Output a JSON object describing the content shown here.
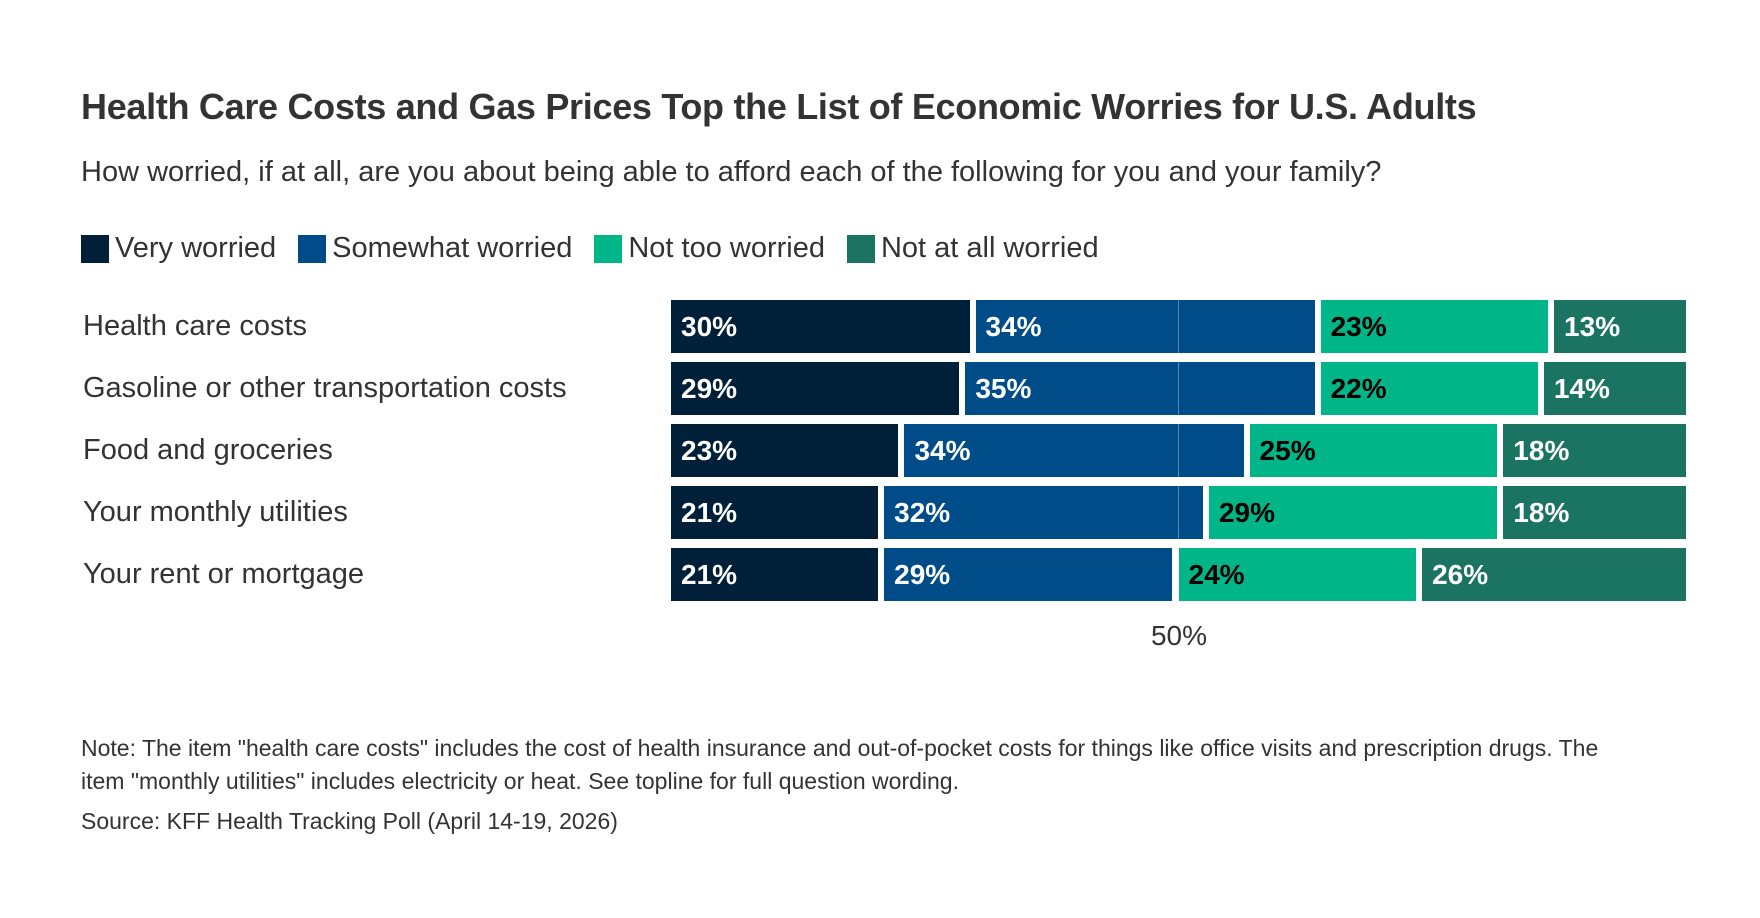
{
  "chart_data": {
    "type": "bar",
    "orientation": "horizontal-stacked",
    "title": "Health Care Costs and Gas Prices Top the List of Economic Worries for U.S. Adults",
    "subtitle": "How worried, if at all, are you about being able to afford each of the following for you and your family?",
    "categories": [
      "Health care costs",
      "Gasoline or other transportation costs",
      "Food and groceries",
      "Your monthly utilities",
      "Your rent or mortgage"
    ],
    "series": [
      {
        "name": "Very worried",
        "color": "#001f38",
        "label_color": "#ffffff",
        "values": [
          30,
          29,
          23,
          21,
          21
        ]
      },
      {
        "name": "Somewhat worried",
        "color": "#004c88",
        "label_color": "#ffffff",
        "values": [
          34,
          35,
          34,
          32,
          29
        ]
      },
      {
        "name": "Not too worried",
        "color": "#00b588",
        "label_color": "#000000",
        "values": [
          23,
          22,
          25,
          29,
          24
        ]
      },
      {
        "name": "Not at all worried",
        "color": "#1b7461",
        "label_color": "#ffffff",
        "values": [
          13,
          14,
          18,
          18,
          26
        ]
      }
    ],
    "xlim": [
      0,
      100
    ],
    "reference_line": {
      "value": 50,
      "label": "50%"
    },
    "legend": "top-left",
    "grid": false
  },
  "note": "Note: The item \"health care costs\" includes the cost of health insurance and out-of-pocket costs for things like office visits and prescription drugs. The item \"monthly utilities\" includes electricity or heat. See topline for full question wording.",
  "source": "Source: KFF Health Tracking Poll (April 14-19, 2026)"
}
